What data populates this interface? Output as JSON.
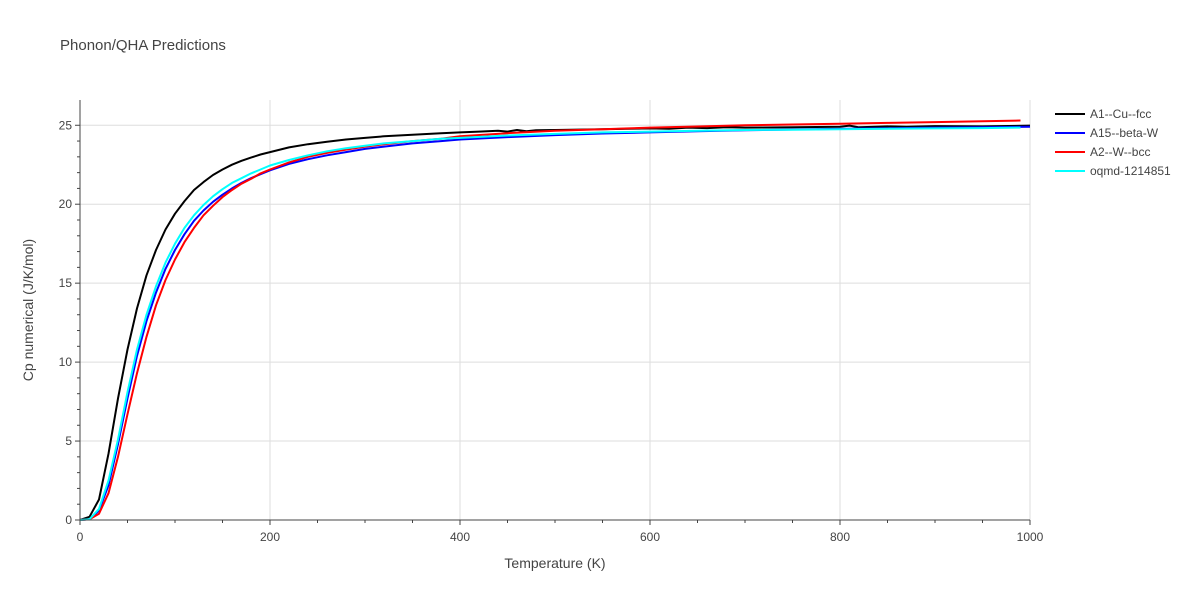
{
  "chart_data": {
    "type": "line",
    "title": "Phonon/QHA Predictions",
    "xlabel": "Temperature (K)",
    "ylabel": "Cp numerical (J/K/mol)",
    "xlim": [
      0,
      1000
    ],
    "ylim": [
      0,
      26.6
    ],
    "xticks": [
      0,
      200,
      400,
      600,
      800,
      1000
    ],
    "xtick_labels": [
      "0",
      "200",
      "400",
      "600",
      "800",
      "1000"
    ],
    "yticks": [
      0,
      5,
      10,
      15,
      20,
      25
    ],
    "ytick_labels": [
      "0",
      "5",
      "10",
      "15",
      "20",
      "25"
    ],
    "grid": true,
    "legend_position": "right",
    "series": [
      {
        "name": "A1--Cu--fcc",
        "color": "#000000",
        "x": [
          0,
          10,
          20,
          30,
          40,
          50,
          60,
          70,
          80,
          90,
          100,
          110,
          120,
          130,
          140,
          150,
          160,
          170,
          180,
          190,
          200,
          220,
          240,
          260,
          280,
          300,
          320,
          350,
          380,
          400,
          420,
          440,
          450,
          460,
          470,
          480,
          500,
          550,
          600,
          620,
          640,
          660,
          680,
          700,
          750,
          800,
          810,
          820,
          850,
          870,
          900,
          950,
          1000
        ],
        "y": [
          0,
          0.2,
          1.3,
          4.2,
          7.7,
          10.8,
          13.4,
          15.5,
          17.1,
          18.4,
          19.4,
          20.2,
          20.9,
          21.4,
          21.85,
          22.2,
          22.5,
          22.75,
          22.95,
          23.15,
          23.3,
          23.6,
          23.8,
          23.95,
          24.1,
          24.2,
          24.3,
          24.4,
          24.5,
          24.55,
          24.6,
          24.65,
          24.6,
          24.7,
          24.62,
          24.68,
          24.7,
          24.75,
          24.8,
          24.78,
          24.85,
          24.82,
          24.88,
          24.85,
          24.88,
          24.9,
          24.98,
          24.87,
          24.93,
          24.9,
          24.95,
          24.93,
          24.98
        ]
      },
      {
        "name": "A15--beta-W",
        "color": "#0000ff",
        "x": [
          0,
          10,
          20,
          30,
          40,
          50,
          60,
          70,
          80,
          90,
          100,
          110,
          120,
          130,
          140,
          150,
          160,
          170,
          180,
          190,
          200,
          220,
          240,
          260,
          280,
          300,
          320,
          350,
          380,
          400,
          450,
          500,
          550,
          600,
          650,
          700,
          750,
          800,
          850,
          900,
          950,
          1000
        ],
        "y": [
          0,
          0.05,
          0.6,
          2.2,
          4.8,
          7.7,
          10.4,
          12.6,
          14.4,
          15.9,
          17.1,
          18.1,
          18.95,
          19.6,
          20.15,
          20.6,
          21.0,
          21.35,
          21.65,
          21.9,
          22.15,
          22.55,
          22.85,
          23.1,
          23.3,
          23.5,
          23.65,
          23.85,
          24.0,
          24.1,
          24.25,
          24.38,
          24.48,
          24.55,
          24.62,
          24.68,
          24.73,
          24.77,
          24.81,
          24.85,
          24.88,
          24.9
        ]
      },
      {
        "name": "A2--W--bcc",
        "color": "#ff0000",
        "x": [
          0,
          10,
          20,
          30,
          40,
          50,
          60,
          70,
          80,
          90,
          100,
          110,
          120,
          130,
          140,
          150,
          160,
          170,
          180,
          190,
          200,
          220,
          240,
          260,
          280,
          300,
          320,
          350,
          380,
          400,
          450,
          500,
          550,
          600,
          650,
          700,
          750,
          800,
          850,
          900,
          950,
          990
        ],
        "y": [
          0,
          0.05,
          0.4,
          1.7,
          4.0,
          6.7,
          9.3,
          11.6,
          13.6,
          15.2,
          16.5,
          17.6,
          18.5,
          19.3,
          19.9,
          20.45,
          20.9,
          21.3,
          21.6,
          21.95,
          22.2,
          22.65,
          23.0,
          23.25,
          23.45,
          23.65,
          23.8,
          24.0,
          24.15,
          24.3,
          24.5,
          24.65,
          24.75,
          24.85,
          24.92,
          25.0,
          25.05,
          25.1,
          25.15,
          25.2,
          25.25,
          25.3
        ]
      },
      {
        "name": "oqmd-1214851",
        "color": "#00ffff",
        "x": [
          0,
          10,
          20,
          30,
          40,
          50,
          60,
          70,
          80,
          90,
          100,
          110,
          120,
          130,
          140,
          150,
          160,
          170,
          180,
          190,
          200,
          220,
          240,
          260,
          280,
          300,
          320,
          350,
          380,
          400,
          450,
          500,
          550,
          600,
          650,
          700,
          750,
          800,
          850,
          900,
          950,
          990
        ],
        "y": [
          0,
          0.05,
          0.7,
          2.5,
          5.1,
          8.1,
          10.8,
          13.0,
          14.8,
          16.3,
          17.5,
          18.5,
          19.3,
          19.95,
          20.5,
          20.95,
          21.35,
          21.65,
          21.95,
          22.2,
          22.45,
          22.8,
          23.1,
          23.35,
          23.55,
          23.7,
          23.85,
          24.0,
          24.15,
          24.2,
          24.35,
          24.45,
          24.55,
          24.6,
          24.65,
          24.7,
          24.72,
          24.75,
          24.78,
          24.8,
          24.82,
          24.85
        ]
      }
    ]
  }
}
